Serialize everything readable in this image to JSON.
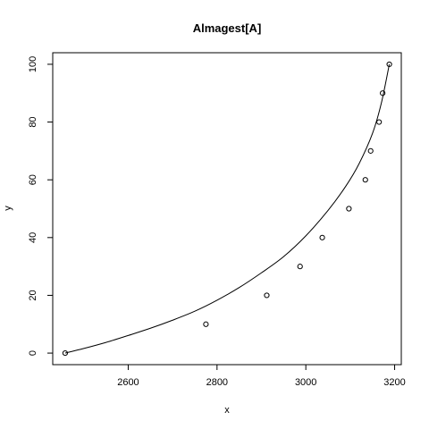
{
  "chart_data": {
    "type": "scatter",
    "title": "Almagest[A]",
    "xlabel": "x",
    "ylabel": "y",
    "xlim": [
      2430,
      3215
    ],
    "ylim": [
      -4,
      104
    ],
    "x_ticks": [
      2600,
      2800,
      3000,
      3200
    ],
    "y_ticks": [
      0,
      20,
      40,
      60,
      80,
      100
    ],
    "x_tick_labels": [
      "2600",
      "2800",
      "3000",
      "3200"
    ],
    "y_tick_labels": [
      "0",
      "20",
      "40",
      "60",
      "80",
      "100"
    ],
    "grid": false,
    "points": [
      {
        "x": 2458,
        "y": 0
      },
      {
        "x": 2775,
        "y": 10
      },
      {
        "x": 2912,
        "y": 20
      },
      {
        "x": 2987,
        "y": 30
      },
      {
        "x": 3037,
        "y": 40
      },
      {
        "x": 3097,
        "y": 50
      },
      {
        "x": 3134,
        "y": 60
      },
      {
        "x": 3146,
        "y": 70
      },
      {
        "x": 3165,
        "y": 80
      },
      {
        "x": 3173,
        "y": 90
      },
      {
        "x": 3188,
        "y": 100
      }
    ],
    "fitted_curve": [
      {
        "x": 2458,
        "y": 0
      },
      {
        "x": 2500,
        "y": 1.6
      },
      {
        "x": 2550,
        "y": 3.7
      },
      {
        "x": 2600,
        "y": 6.1
      },
      {
        "x": 2650,
        "y": 8.6
      },
      {
        "x": 2700,
        "y": 11.4
      },
      {
        "x": 2750,
        "y": 14.5
      },
      {
        "x": 2800,
        "y": 18.3
      },
      {
        "x": 2850,
        "y": 22.7
      },
      {
        "x": 2900,
        "y": 27.8
      },
      {
        "x": 2950,
        "y": 33.4
      },
      {
        "x": 3000,
        "y": 40.6
      },
      {
        "x": 3050,
        "y": 49.4
      },
      {
        "x": 3090,
        "y": 57.8
      },
      {
        "x": 3120,
        "y": 65.6
      },
      {
        "x": 3150,
        "y": 76.0
      },
      {
        "x": 3170,
        "y": 86.5
      },
      {
        "x": 3188,
        "y": 100
      }
    ]
  }
}
